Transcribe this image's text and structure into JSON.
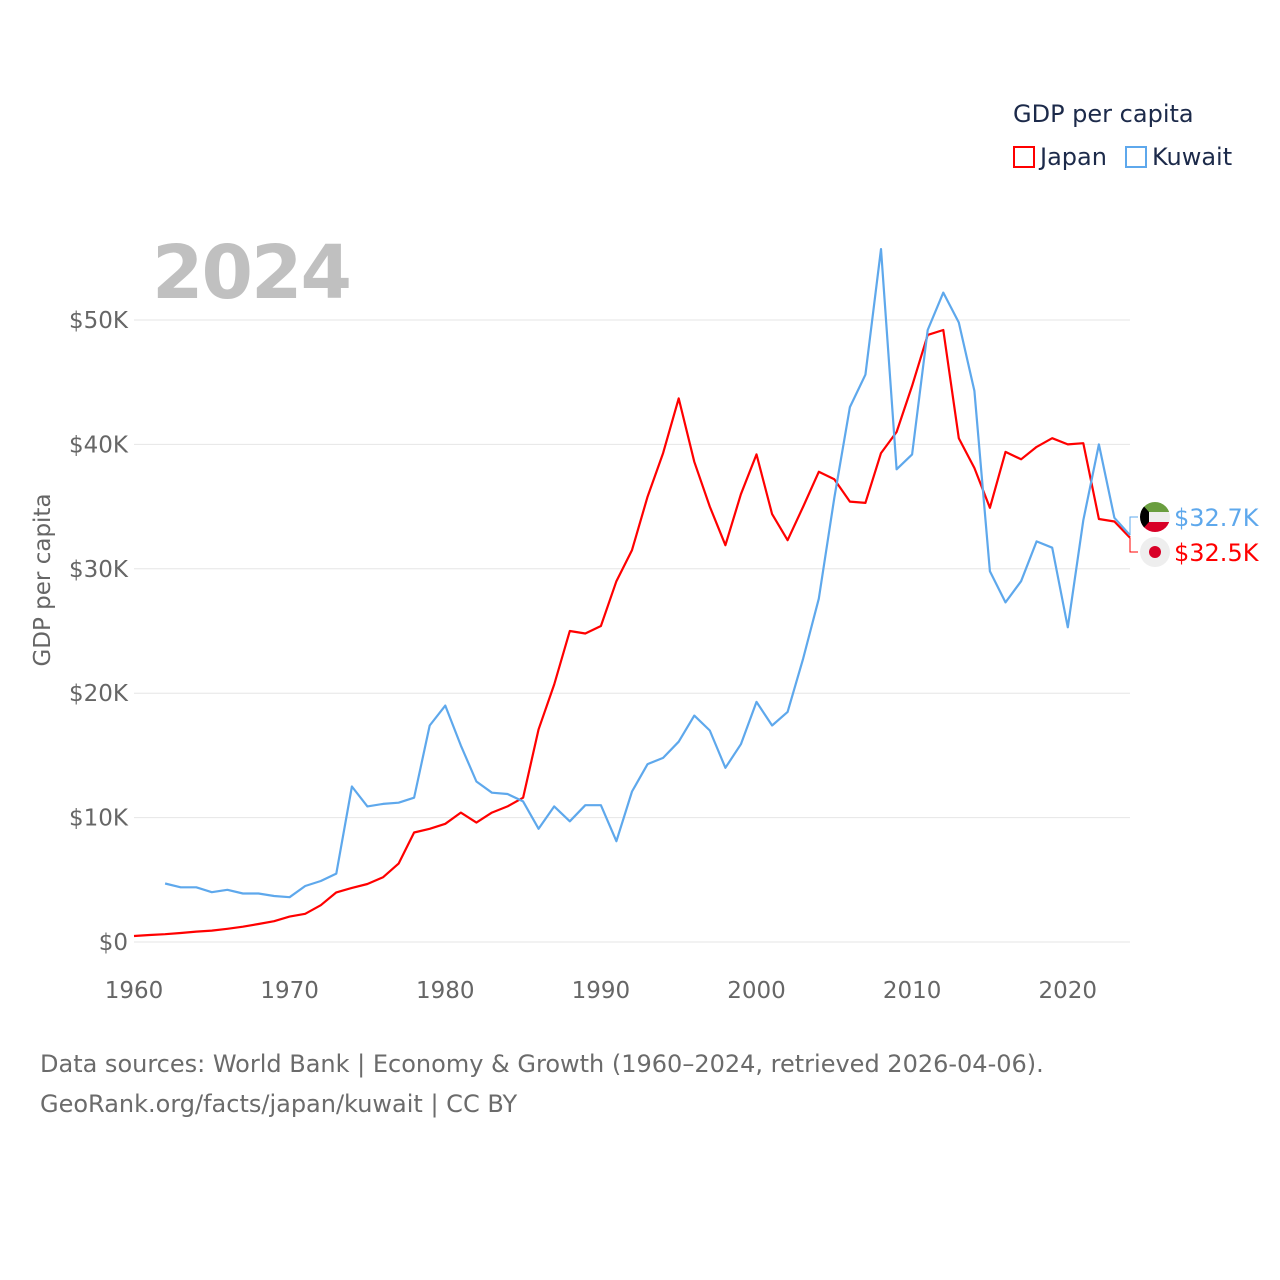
{
  "chart_data": {
    "type": "line",
    "title": "GDP per capita",
    "ylabel": "GDP per capita",
    "xlabel": "",
    "year_label": "2024",
    "xlim": [
      1960,
      2024
    ],
    "ylim": [
      0,
      50000
    ],
    "x_ticks": [
      "1960",
      "1970",
      "1980",
      "1990",
      "2000",
      "2010",
      "2020"
    ],
    "y_ticks": [
      "$0",
      "$10K",
      "$20K",
      "$30K",
      "$40K",
      "$50K"
    ],
    "grid": true,
    "legend_position": "top-right",
    "series": [
      {
        "name": "Japan",
        "color": "#ff0000",
        "start_year": 1960,
        "end_label": "$32.5K",
        "values": [
          480,
          560,
          630,
          720,
          840,
          920,
          1060,
          1230,
          1450,
          1670,
          2040,
          2270,
          2960,
          3990,
          4350,
          4660,
          5200,
          6300,
          8800,
          9100,
          9500,
          10400,
          9600,
          10400,
          10900,
          11600,
          17100,
          20700,
          25000,
          24800,
          25400,
          29000,
          31500,
          35800,
          39300,
          43700,
          38600,
          35000,
          31900,
          36000,
          39200,
          34400,
          32300,
          35000,
          37800,
          37200,
          35400,
          35300,
          39300,
          41000,
          44700,
          48800,
          49200,
          40500,
          38100,
          34900,
          39400,
          38800,
          39800,
          40500,
          40000,
          40100,
          34000,
          33800,
          32500
        ]
      },
      {
        "name": "Kuwait",
        "color": "#5ea8ec",
        "start_year": 1962,
        "end_label": "$32.7K",
        "values": [
          4700,
          4400,
          4400,
          4000,
          4200,
          3900,
          3900,
          3700,
          3600,
          4500,
          4900,
          5500,
          12500,
          10900,
          11100,
          11200,
          11600,
          17400,
          19000,
          15800,
          12900,
          12000,
          11900,
          11300,
          9100,
          10900,
          9700,
          11000,
          11000,
          8100,
          12100,
          14300,
          14800,
          16100,
          18200,
          17000,
          14000,
          15900,
          19300,
          17400,
          18500,
          22800,
          27600,
          35700,
          43000,
          45600,
          55700,
          38000,
          39200,
          49200,
          52200,
          49800,
          44300,
          29800,
          27300,
          29000,
          32200,
          31700,
          25300,
          33900,
          40000,
          34100,
          32700
        ]
      }
    ]
  },
  "footer": {
    "line1": "Data sources: World Bank | Economy & Growth (1960–2024, retrieved 2026-04-06).",
    "line2": "GeoRank.org/facts/japan/kuwait | CC BY"
  }
}
